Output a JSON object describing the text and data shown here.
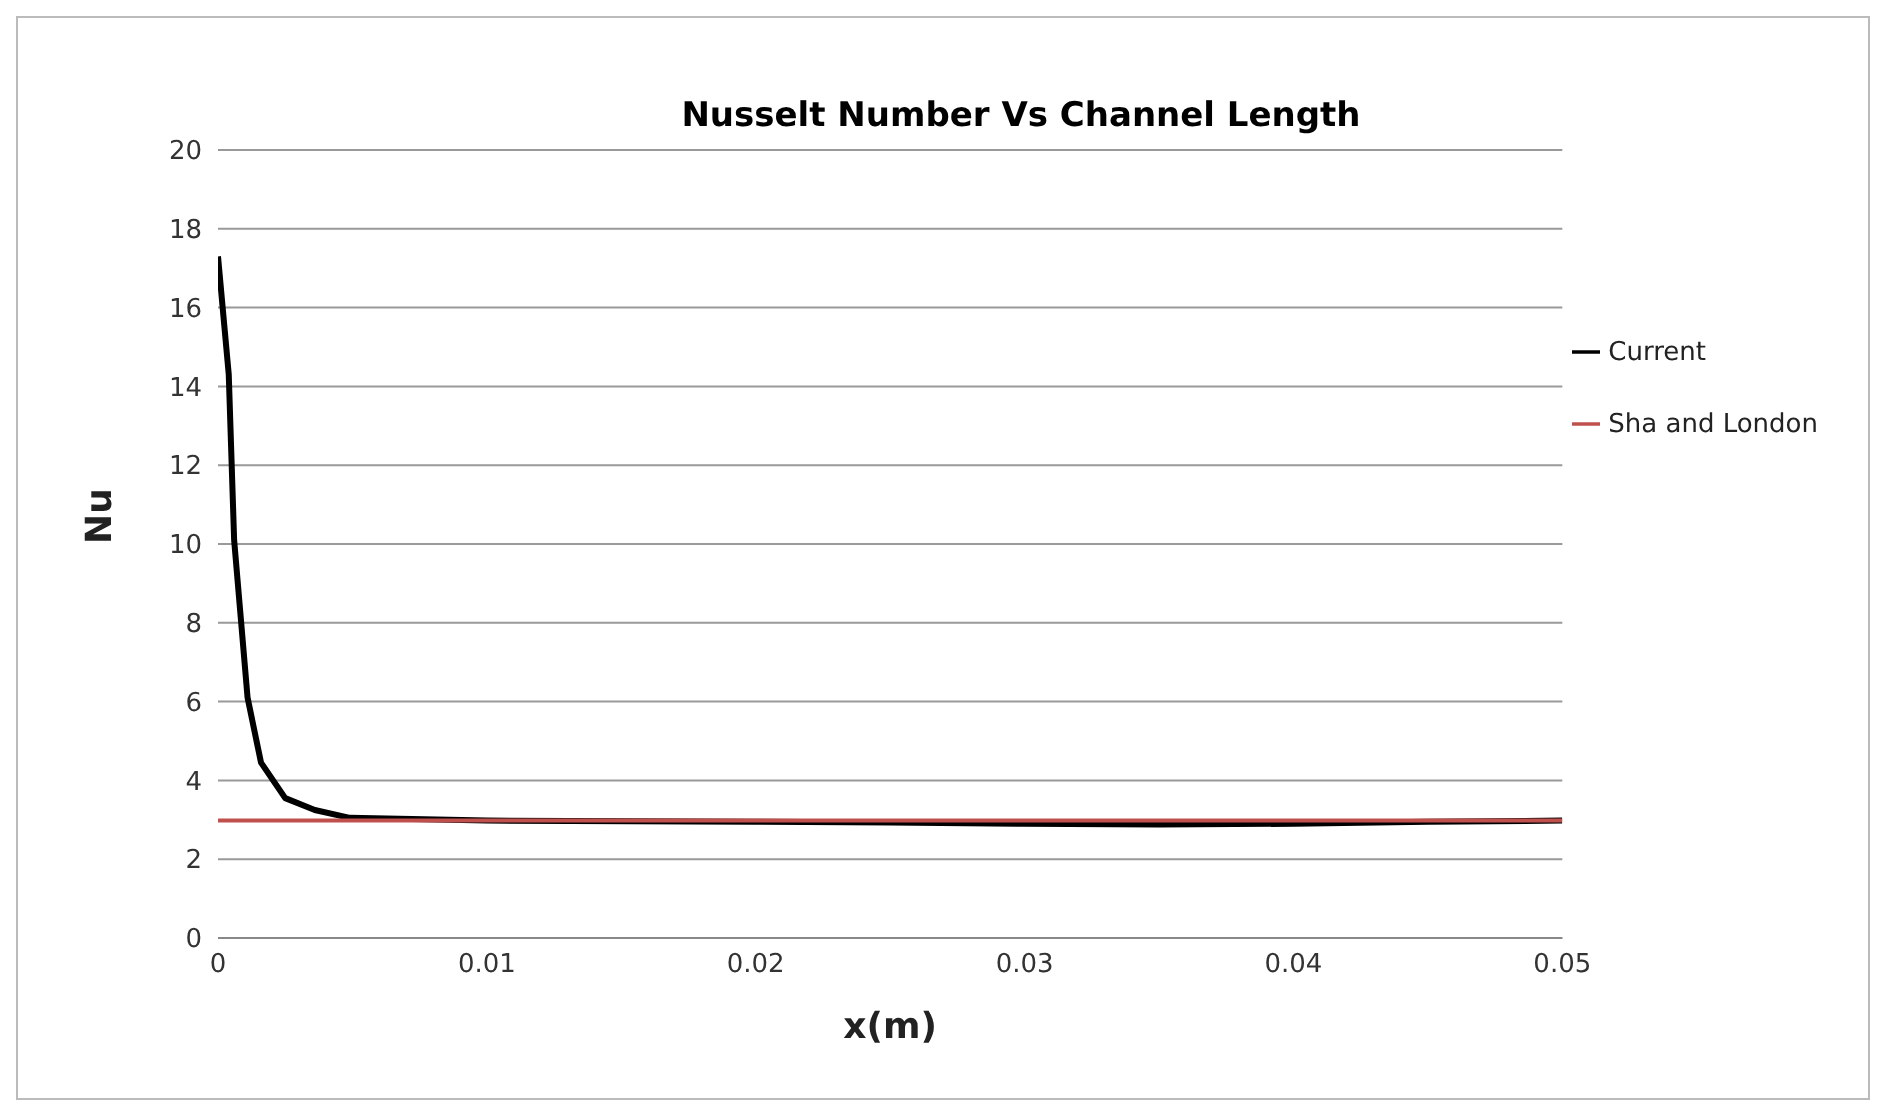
{
  "chart_data": {
    "type": "line",
    "title": "Nusselt Number Vs Channel Length",
    "xlabel": "x(m)",
    "ylabel": "Nu",
    "xlim": [
      0,
      0.05
    ],
    "xticks": [
      0,
      0.01,
      0.02,
      0.03,
      0.04,
      0.05
    ],
    "ylim": [
      0,
      20
    ],
    "yticks": [
      0,
      2,
      4,
      6,
      8,
      10,
      12,
      14,
      16,
      18,
      20
    ],
    "grid": "y",
    "legend": "right",
    "marker": "none",
    "line_style": "solid",
    "series": [
      {
        "name": "Current",
        "color": "#000000",
        "x": [
          0,
          0.0002,
          0.0004,
          0.0006,
          0.0011,
          0.0016,
          0.0025,
          0.0036,
          0.0049,
          0.01,
          0.02,
          0.025,
          0.03,
          0.035,
          0.04,
          0.045,
          0.05
        ],
        "values": [
          17.3,
          15.8,
          14.3,
          10.1,
          6.1,
          4.45,
          3.55,
          3.25,
          3.05,
          2.98,
          2.95,
          2.93,
          2.9,
          2.88,
          2.9,
          2.95,
          2.98
        ]
      },
      {
        "name": "Sha and London",
        "color": "#c0504d",
        "x": [
          0,
          0.05
        ],
        "values": [
          2.98,
          2.98
        ]
      }
    ]
  }
}
